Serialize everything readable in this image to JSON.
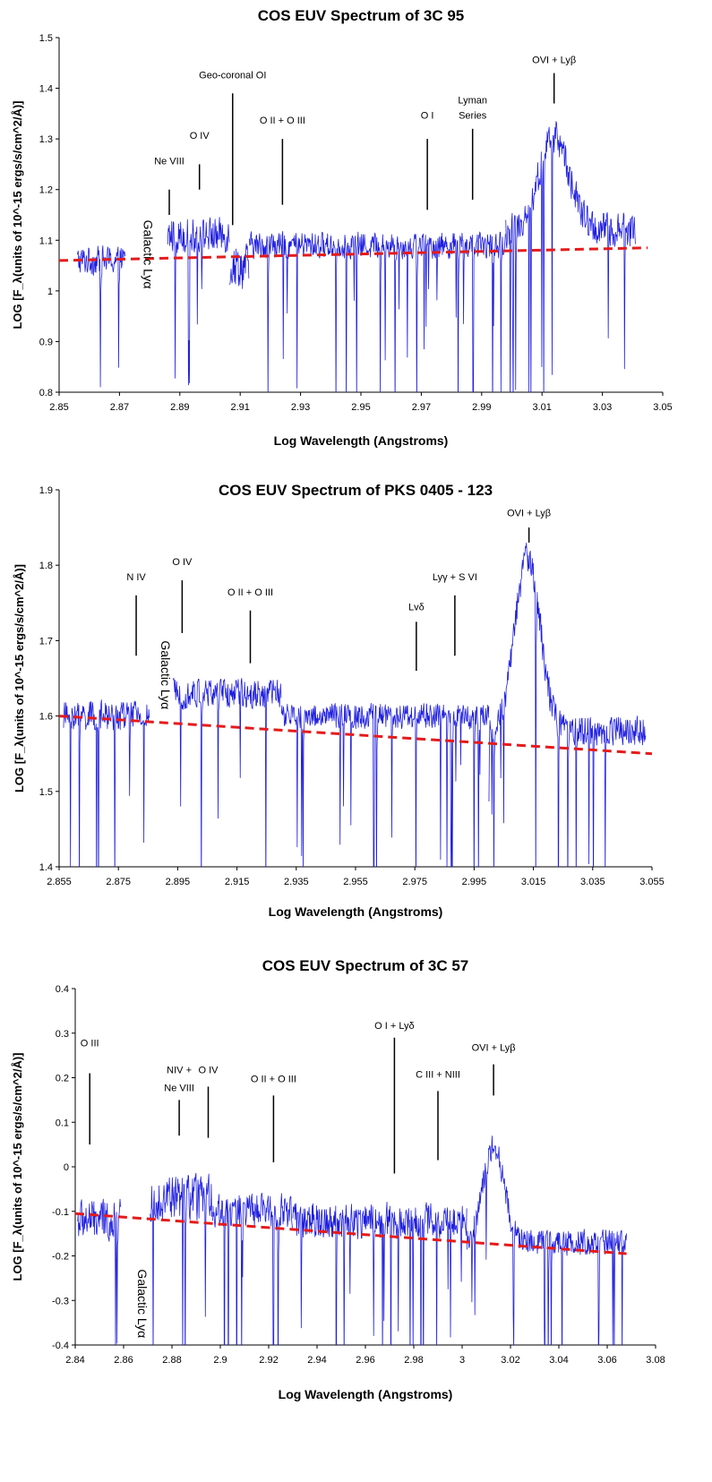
{
  "colors": {
    "spectrum": "#1f1fe0",
    "fit": "#e51b1b",
    "axis": "#000000"
  },
  "chart_data": [
    {
      "type": "line",
      "title": "COS EUV Spectrum of 3C 95",
      "xlabel": "Log Wavelength (Angstroms)",
      "ylabel": "LOG [F_λ(units of 10^-15 ergs/s/cm^2/Å)]",
      "xlim": [
        2.85,
        3.05
      ],
      "ylim": [
        0.8,
        1.5
      ],
      "xticks": [
        "2.85",
        "2.87",
        "2.89",
        "2.91",
        "2.93",
        "2.95",
        "2.97",
        "2.99",
        "3.01",
        "3.03",
        "3.05"
      ],
      "yticks": [
        "0.8",
        "0.9",
        "1",
        "1.1",
        "1.2",
        "1.3",
        "1.4",
        "1.5"
      ],
      "grid": false,
      "legend": "none",
      "spectrum_segments": [
        {
          "x0": 2.856,
          "x1": 2.872,
          "level": 1.06,
          "amp": 0.05
        },
        {
          "x0": 2.886,
          "x1": 2.9065,
          "level": 1.11,
          "amp": 0.06
        },
        {
          "x0": 2.9065,
          "x1": 2.913,
          "level": 1.05,
          "amp": 0.08
        },
        {
          "x0": 2.913,
          "x1": 2.998,
          "level": 1.09,
          "amp": 0.045
        },
        {
          "x0": 2.998,
          "x1": 3.041,
          "level": 1.12,
          "amp": 0.06
        }
      ],
      "peaks": [
        {
          "x": 3.014,
          "y": 1.28,
          "w": 0.007
        }
      ],
      "fit_line": {
        "x": [
          2.85,
          3.045
        ],
        "y": [
          1.06,
          1.085
        ]
      },
      "annotations": [
        {
          "text": "Ne VIII",
          "x": 2.8865,
          "label_y": 1.25,
          "line_top": 1.2,
          "line_bottom": 1.15
        },
        {
          "text": "O IV",
          "x": 2.8965,
          "label_y": 1.3,
          "line_top": 1.25,
          "line_bottom": 1.2
        },
        {
          "text": "Geo-coronal OI",
          "x": 2.9075,
          "label_y": 1.42,
          "line_top": 1.39,
          "line_bottom": 1.13
        },
        {
          "text": "O II + O III",
          "x": 2.924,
          "label_y": 1.33,
          "line_top": 1.3,
          "line_bottom": 1.17
        },
        {
          "text": "O I",
          "x": 2.972,
          "label_y": 1.34,
          "line_top": 1.3,
          "line_bottom": 1.16
        },
        {
          "text": "Lyman",
          "x": 2.987,
          "label_y": 1.37,
          "line_top": null,
          "line_bottom": null
        },
        {
          "text": "Series",
          "x": 2.987,
          "label_y": 1.34,
          "line_top": 1.32,
          "line_bottom": 1.18
        },
        {
          "text": "OVI + Lyβ",
          "x": 3.014,
          "label_y": 1.45,
          "line_top": 1.43,
          "line_bottom": 1.37
        }
      ],
      "vertical_labels": [
        {
          "text": "Galactic  Lyα",
          "x": 2.878,
          "y": 1.14
        }
      ]
    },
    {
      "type": "line",
      "title": "COS EUV Spectrum of PKS 0405 - 123",
      "xlabel": "Log Wavelength (Angstroms)",
      "ylabel": "LOG [F_λ(units of 10^-15 ergs/s/cm^2/Å)]",
      "xlim": [
        2.855,
        3.055
      ],
      "ylim": [
        1.4,
        1.9
      ],
      "xticks": [
        "2.855",
        "2.875",
        "2.895",
        "2.915",
        "2.935",
        "2.955",
        "2.975",
        "2.995",
        "3.015",
        "3.035",
        "3.055"
      ],
      "yticks": [
        "1.4",
        "1.5",
        "1.6",
        "1.7",
        "1.8",
        "1.9"
      ],
      "grid": false,
      "legend": "none",
      "spectrum_segments": [
        {
          "x0": 2.8565,
          "x1": 2.8855,
          "level": 1.6,
          "amp": 0.035
        },
        {
          "x0": 2.8935,
          "x1": 2.93,
          "level": 1.63,
          "amp": 0.035
        },
        {
          "x0": 2.93,
          "x1": 3.0,
          "level": 1.6,
          "amp": 0.03
        },
        {
          "x0": 3.0,
          "x1": 3.053,
          "level": 1.58,
          "amp": 0.035
        }
      ],
      "peaks": [
        {
          "x": 3.013,
          "y": 1.78,
          "w": 0.006
        }
      ],
      "fit_line": {
        "x": [
          2.855,
          3.055
        ],
        "y": [
          1.6,
          1.55
        ]
      },
      "annotations": [
        {
          "text": "N IV",
          "x": 2.881,
          "label_y": 1.78,
          "line_top": 1.76,
          "line_bottom": 1.68
        },
        {
          "text": "O IV",
          "x": 2.8965,
          "label_y": 1.8,
          "line_top": 1.78,
          "line_bottom": 1.71
        },
        {
          "text": "O II + O III",
          "x": 2.9195,
          "label_y": 1.76,
          "line_top": 1.74,
          "line_bottom": 1.67
        },
        {
          "text": "Lvδ",
          "x": 2.9755,
          "label_y": 1.74,
          "line_top": 1.725,
          "line_bottom": 1.66
        },
        {
          "text": "Lyγ  + S VI",
          "x": 2.9885,
          "label_y": 1.78,
          "line_top": 1.76,
          "line_bottom": 1.68
        },
        {
          "text": "OVI + Lyβ",
          "x": 3.0135,
          "label_y": 1.865,
          "line_top": 1.85,
          "line_bottom": 1.83
        }
      ],
      "vertical_labels": [
        {
          "text": "Galactic  Lyα",
          "x": 2.8895,
          "y": 1.7
        }
      ]
    },
    {
      "type": "line",
      "title": "COS EUV Spectrum of 3C 57",
      "xlabel": "Log Wavelength (Angstroms)",
      "ylabel": "LOG [F_λ(units of 10^-15 ergs/s/cm^2/Å)]",
      "xlim": [
        2.84,
        3.08
      ],
      "ylim": [
        -0.4,
        0.4
      ],
      "xticks": [
        "2.84",
        "2.86",
        "2.88",
        "2.9",
        "2.92",
        "2.94",
        "2.96",
        "2.98",
        "3",
        "3.02",
        "3.04",
        "3.06",
        "3.08"
      ],
      "yticks": [
        "-0.4",
        "-0.3",
        "-0.2",
        "-0.1",
        "0",
        "0.1",
        "0.2",
        "0.3",
        "0.4"
      ],
      "grid": false,
      "legend": "none",
      "spectrum_segments": [
        {
          "x0": 2.841,
          "x1": 2.859,
          "level": -0.12,
          "amp": 0.08
        },
        {
          "x0": 2.871,
          "x1": 2.897,
          "level": -0.07,
          "amp": 0.09
        },
        {
          "x0": 2.897,
          "x1": 2.93,
          "level": -0.1,
          "amp": 0.07
        },
        {
          "x0": 2.93,
          "x1": 3.002,
          "level": -0.12,
          "amp": 0.07
        },
        {
          "x0": 3.002,
          "x1": 3.068,
          "level": -0.17,
          "amp": 0.05
        }
      ],
      "peaks": [
        {
          "x": 3.013,
          "y": 0.02,
          "w": 0.006
        }
      ],
      "fit_line": {
        "x": [
          2.84,
          3.068
        ],
        "y": [
          -0.105,
          -0.195
        ]
      },
      "annotations": [
        {
          "text": "O III",
          "x": 2.846,
          "label_y": 0.27,
          "line_top": 0.21,
          "line_bottom": 0.05
        },
        {
          "text": "NIV +",
          "x": 2.883,
          "label_y": 0.21,
          "line_top": null,
          "line_bottom": null
        },
        {
          "text": "Ne VIII",
          "x": 2.883,
          "label_y": 0.17,
          "line_top": 0.15,
          "line_bottom": 0.07
        },
        {
          "text": "O IV",
          "x": 2.895,
          "label_y": 0.21,
          "line_top": 0.18,
          "line_bottom": 0.065
        },
        {
          "text": "O II + O III",
          "x": 2.922,
          "label_y": 0.19,
          "line_top": 0.16,
          "line_bottom": 0.01
        },
        {
          "text": "O I + Lyδ",
          "x": 2.972,
          "label_y": 0.31,
          "line_top": 0.29,
          "line_bottom": -0.015
        },
        {
          "text": "C III + NIII",
          "x": 2.99,
          "label_y": 0.2,
          "line_top": 0.17,
          "line_bottom": 0.015
        },
        {
          "text": "OVI + Lyβ",
          "x": 3.013,
          "label_y": 0.26,
          "line_top": 0.23,
          "line_bottom": 0.16
        }
      ],
      "vertical_labels": [
        {
          "text": "Galactic  Lyα",
          "x": 2.866,
          "y": -0.23
        }
      ]
    }
  ]
}
